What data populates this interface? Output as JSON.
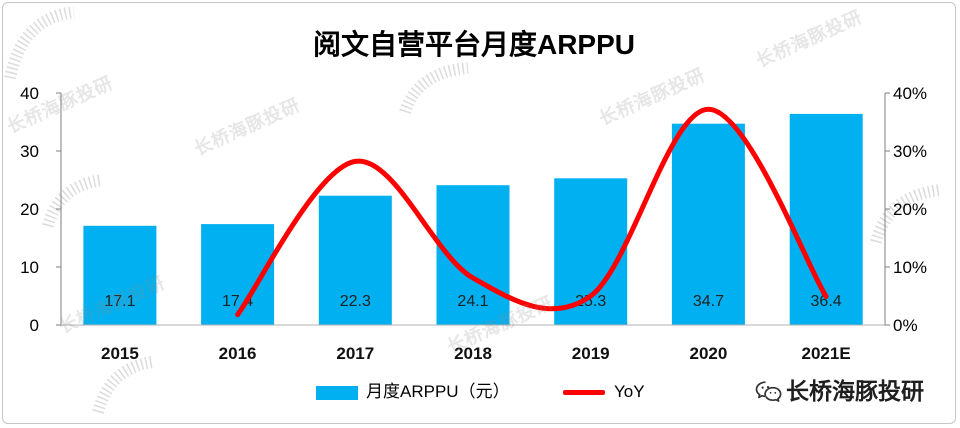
{
  "chart_data": {
    "type": "bar",
    "title": "阅文自营平台月度ARPPU",
    "categories": [
      "2015",
      "2016",
      "2017",
      "2018",
      "2019",
      "2020",
      "2021E"
    ],
    "series": [
      {
        "name": "月度ARPPU（元）",
        "type": "bar",
        "secondary_axis": false,
        "color": "#00B0F0",
        "values": [
          17.1,
          17.4,
          22.3,
          24.1,
          25.3,
          34.7,
          36.4
        ]
      },
      {
        "name": "YoY",
        "type": "line",
        "secondary_axis": true,
        "smooth": true,
        "color": "#FF0000",
        "values": [
          null,
          1.8,
          28.2,
          8.1,
          5.0,
          37.2,
          4.9
        ]
      }
    ],
    "ylim": [
      0,
      40
    ],
    "yticks": [
      0,
      10,
      20,
      30,
      40
    ],
    "y2lim": [
      0,
      40
    ],
    "y2ticks": [
      "0%",
      "10%",
      "20%",
      "30%",
      "40%"
    ],
    "data_labels": true,
    "legend": "bottom",
    "grid": false
  },
  "watermark": "长桥海豚投研",
  "brand": {
    "icon": "wechat-icon",
    "text": "长桥海豚投研"
  }
}
